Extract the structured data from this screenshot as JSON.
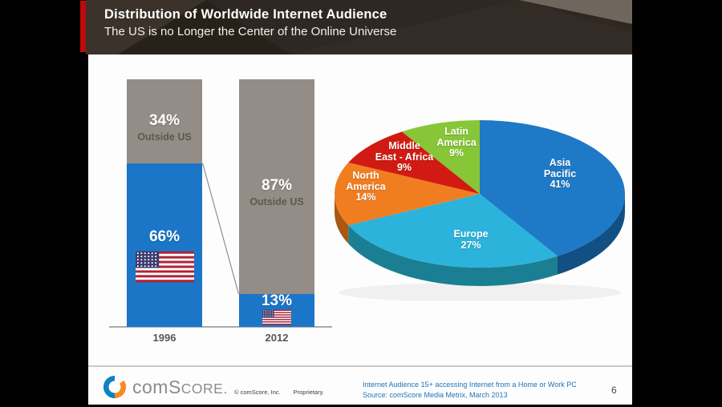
{
  "slide": {
    "title": "Distribution of Worldwide Internet Audience",
    "subtitle": "The US is no Longer the Center of the Online Universe",
    "page_number": "6"
  },
  "footer": {
    "logo_com": "com",
    "logo_score": "SCORE.",
    "copyright": "© comScore, Inc.",
    "proprietary": "Proprietary.",
    "note_line1": "Internet Audience 15+ accessing Internet from a Home or Work PC",
    "note_line2": "Source:  comScore Media Metrix, March 2013"
  },
  "chart_data": [
    {
      "type": "bar",
      "subtype": "stacked-percent",
      "categories": [
        "1996",
        "2012"
      ],
      "series": [
        {
          "name": "US",
          "values": [
            66,
            13
          ],
          "labels": [
            "66%",
            "13%"
          ],
          "color": "#1B76C8"
        },
        {
          "name": "Outside US",
          "values": [
            34,
            87
          ],
          "labels": [
            "34%",
            "87%"
          ],
          "sublabel": "Outside US",
          "color": "#948D87"
        }
      ],
      "unit": "%",
      "ylim": [
        0,
        100
      ],
      "grid": false,
      "legend": "none (US segments marked with US flag icons)"
    },
    {
      "type": "pie",
      "style": "3d",
      "slices": [
        {
          "name": "Asia Pacific",
          "value": 41,
          "label_lines": [
            "Asia",
            "Pacific",
            "41%"
          ],
          "color": "#1E79C6",
          "side_color": "#124F83"
        },
        {
          "name": "Europe",
          "value": 27,
          "label_lines": [
            "Europe",
            "27%"
          ],
          "color": "#2BB3DB",
          "side_color": "#1B7F93"
        },
        {
          "name": "North America",
          "value": 14,
          "label_lines": [
            "North",
            "America",
            "14%"
          ],
          "color": "#F07E21",
          "side_color": "#A85812"
        },
        {
          "name": "Middle East - Africa",
          "value": 9,
          "label_lines": [
            "Middle",
            "East - Africa",
            "9%"
          ],
          "color": "#D11B12",
          "side_color": "#8F120D"
        },
        {
          "name": "Latin America",
          "value": 9,
          "label_lines": [
            "Latin",
            "America",
            "9%"
          ],
          "color": "#87C636",
          "side_color": "#5B8B1F"
        }
      ],
      "start_angle": "12 o'clock, clockwise",
      "legend": "labels inside slices"
    }
  ]
}
